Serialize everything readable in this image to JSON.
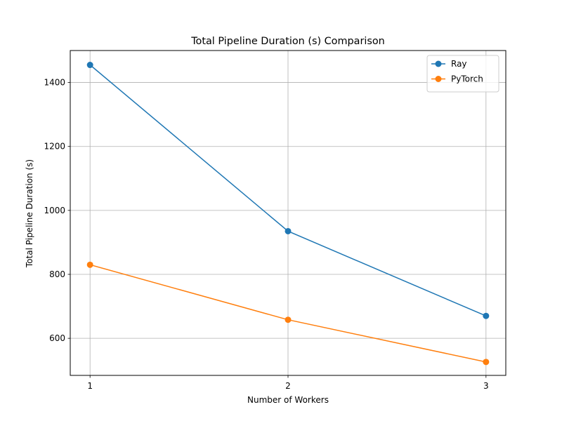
{
  "chart_data": {
    "type": "line",
    "title": "Total Pipeline Duration (s) Comparison",
    "xlabel": "Number of Workers",
    "ylabel": "Total Pipeline Duration (s)",
    "x": [
      1,
      2,
      3
    ],
    "x_ticks": [
      "1",
      "2",
      "3"
    ],
    "y_ticks": [
      600,
      800,
      1000,
      1200,
      1400
    ],
    "y_tick_labels": [
      "600",
      "800",
      "1000",
      "1200",
      "1400"
    ],
    "xlim": [
      0.9,
      3.1
    ],
    "ylim": [
      484,
      1500
    ],
    "grid": true,
    "legend_position": "top-right",
    "series": [
      {
        "name": "Ray",
        "values": [
          1455,
          935,
          670
        ],
        "color": "#1f77b4",
        "marker": "circle"
      },
      {
        "name": "PyTorch",
        "values": [
          830,
          658,
          526
        ],
        "color": "#ff7f0e",
        "marker": "circle"
      }
    ]
  }
}
